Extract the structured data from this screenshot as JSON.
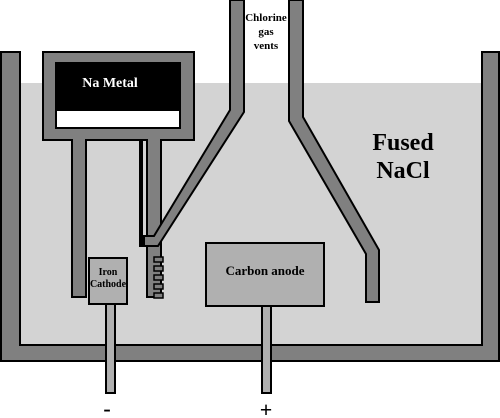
{
  "labels": {
    "na_metal": "Na Metal",
    "chlorine_line1": "Chlorine",
    "chlorine_line2": "gas",
    "chlorine_line3": "vents",
    "fused_line1": "Fused",
    "fused_line2": "NaCl",
    "iron_line1": "Iron",
    "iron_line2": "Cathode",
    "carbon_anode": "Carbon anode",
    "minus": "-",
    "plus": "+"
  },
  "colors": {
    "wall": "#808080",
    "melt": "#d3d3d3",
    "electrode": "#b0b0b0",
    "na_metal": "#000000",
    "outline": "#000000"
  }
}
